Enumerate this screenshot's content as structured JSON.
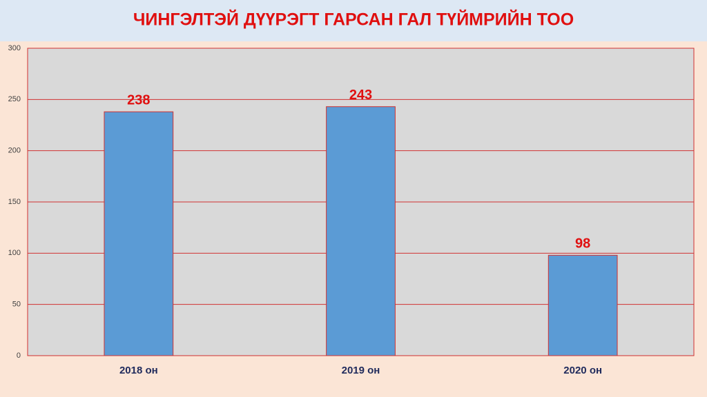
{
  "chart_data": {
    "type": "bar",
    "title": "ЧИНГЭЛТЭЙ ДҮҮРЭГТ ГАРСАН ГАЛ ТҮЙМРИЙН ТОО",
    "categories": [
      "2018 он",
      "2019 он",
      "2020 он"
    ],
    "values": [
      238,
      243,
      98
    ],
    "color": "#5b9bd5",
    "ylim": [
      0,
      300
    ],
    "yticks": [
      0,
      50,
      100,
      150,
      200,
      250,
      300
    ],
    "grid": true
  }
}
